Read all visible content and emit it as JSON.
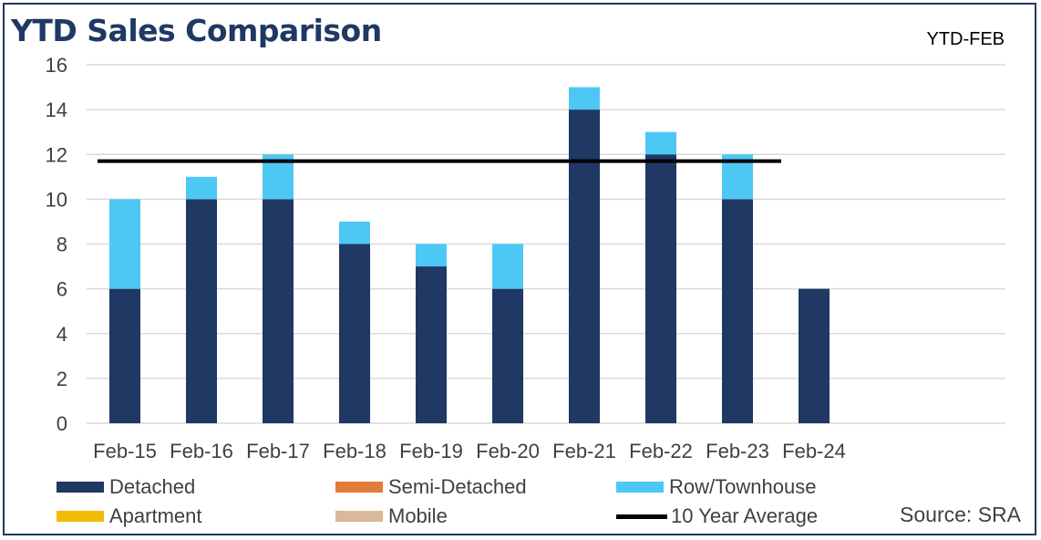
{
  "header": {
    "title": "YTD Sales Comparison",
    "subtitle": "YTD-FEB",
    "source": "Source: SRA"
  },
  "colors": {
    "frame": "#1f3864",
    "title": "#1f3864",
    "detached": "#1f3864",
    "semi_detached": "#e07b39",
    "row_townhouse": "#4dc8f5",
    "apartment": "#f2bb05",
    "mobile": "#d9b89c",
    "average_line": "#000000",
    "grid": "#d9d9d9",
    "axis_text": "#404040"
  },
  "legend": [
    {
      "key": "detached",
      "label": "Detached",
      "type": "swatch"
    },
    {
      "key": "semi_detached",
      "label": "Semi-Detached",
      "type": "swatch"
    },
    {
      "key": "row_townhouse",
      "label": "Row/Townhouse",
      "type": "swatch"
    },
    {
      "key": "apartment",
      "label": "Apartment",
      "type": "swatch"
    },
    {
      "key": "mobile",
      "label": "Mobile",
      "type": "swatch"
    },
    {
      "key": "average_line",
      "label": "10 Year Average",
      "type": "line"
    }
  ],
  "chart_data": {
    "type": "bar",
    "stacked": true,
    "title": "YTD Sales Comparison",
    "subtitle": "YTD-FEB",
    "xlabel": "",
    "ylabel": "",
    "categories": [
      "Feb-15",
      "Feb-16",
      "Feb-17",
      "Feb-18",
      "Feb-19",
      "Feb-20",
      "Feb-21",
      "Feb-22",
      "Feb-23",
      "Feb-24"
    ],
    "series": [
      {
        "name": "Detached",
        "color": "#1f3864",
        "values": [
          6,
          10,
          10,
          8,
          7,
          6,
          14,
          12,
          10,
          6
        ]
      },
      {
        "name": "Semi-Detached",
        "color": "#e07b39",
        "values": [
          0,
          0,
          0,
          0,
          0,
          0,
          0,
          0,
          0,
          0
        ]
      },
      {
        "name": "Row/Townhouse",
        "color": "#4dc8f5",
        "values": [
          4,
          1,
          2,
          1,
          1,
          2,
          1,
          1,
          2,
          0
        ]
      },
      {
        "name": "Apartment",
        "color": "#f2bb05",
        "values": [
          0,
          0,
          0,
          0,
          0,
          0,
          0,
          0,
          0,
          0
        ]
      },
      {
        "name": "Mobile",
        "color": "#d9b89c",
        "values": [
          0,
          0,
          0,
          0,
          0,
          0,
          0,
          0,
          0,
          0
        ]
      }
    ],
    "average_line": {
      "name": "10 Year Average",
      "value": 11.7,
      "from_category": "Feb-15",
      "to_category": "Feb-23"
    },
    "ylim": [
      0,
      16
    ],
    "yticks": [
      0,
      2,
      4,
      6,
      8,
      10,
      12,
      14,
      16
    ],
    "grid": true,
    "legend_position": "bottom"
  }
}
